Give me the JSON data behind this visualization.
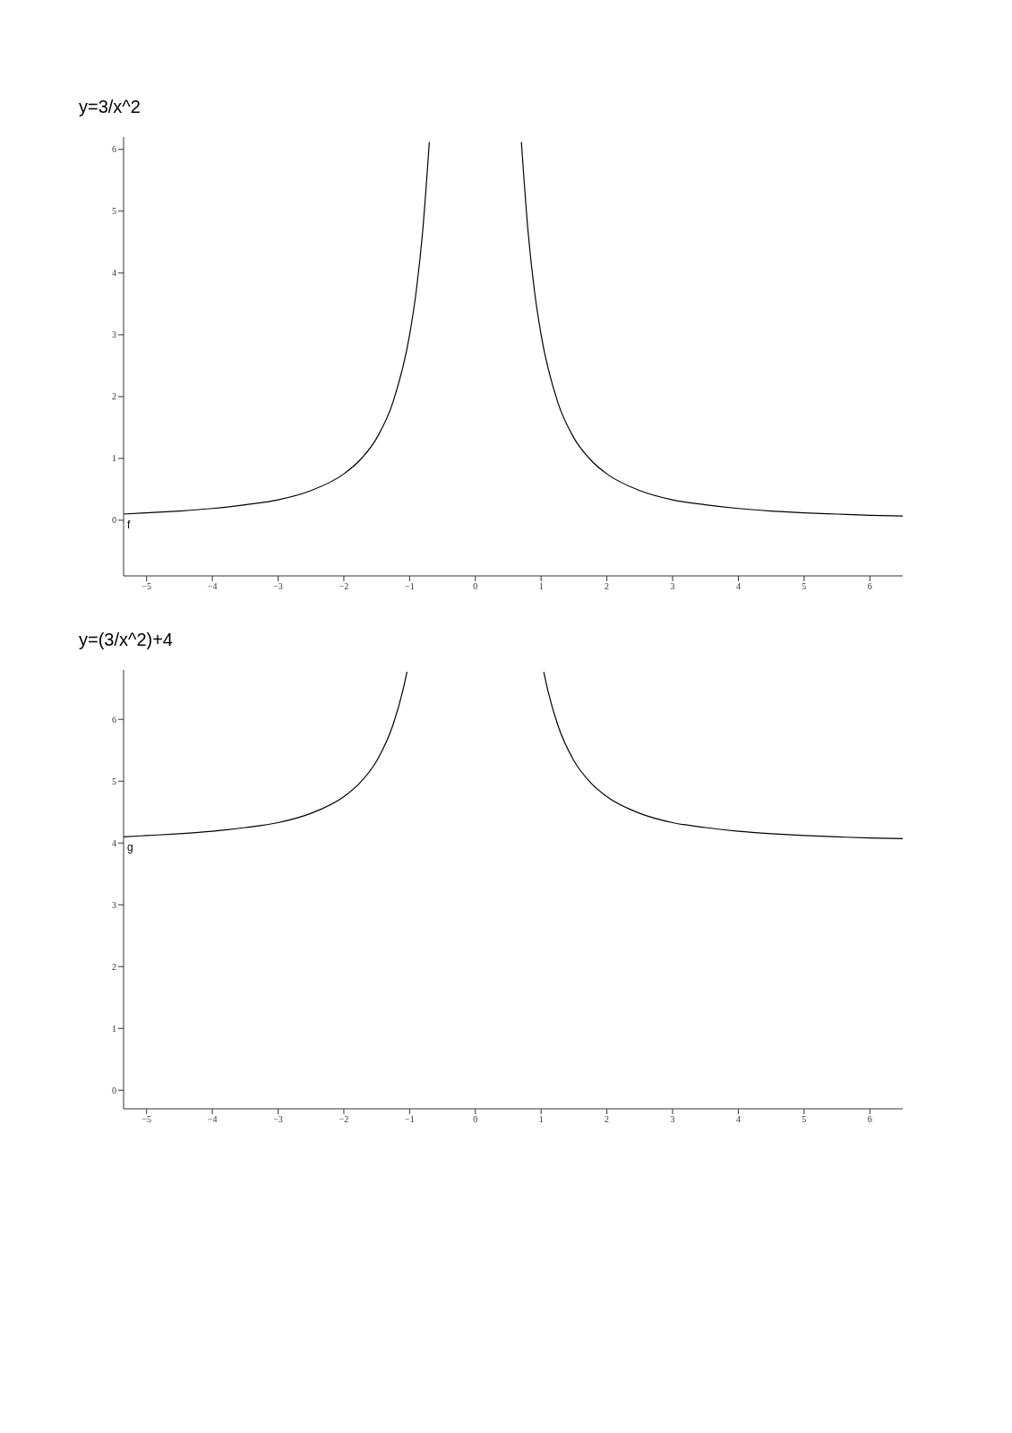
{
  "chart_data": [
    {
      "type": "line",
      "title": "y=3/x^2",
      "xlim": [
        -5.35,
        6.5
      ],
      "ylim": [
        -0.9,
        6.2
      ],
      "xticks": [
        -5,
        -4,
        -3,
        -2,
        -1,
        0,
        1,
        2,
        3,
        4,
        5,
        6
      ],
      "yticks": [
        0,
        1,
        2,
        3,
        4,
        5,
        6
      ],
      "grid": false,
      "legend": false,
      "marker": "none",
      "line_style": "solid",
      "series": [
        {
          "name": "f",
          "color": "#000000",
          "x": [
            -5.35,
            -5,
            -4.5,
            -4,
            -3.5,
            -3,
            -2.5,
            -2,
            -1.75,
            -1.5,
            -1.25,
            -1,
            -0.9,
            -0.8,
            -0.7,
            0,
            0.7,
            0.8,
            0.9,
            1,
            1.25,
            1.5,
            1.75,
            2,
            2.5,
            3,
            3.5,
            4,
            4.5,
            5,
            5.5,
            6,
            6.5
          ],
          "values": [
            0.1,
            0.12,
            0.15,
            0.19,
            0.25,
            0.33,
            0.48,
            0.75,
            0.98,
            1.33,
            1.92,
            3,
            3.7,
            4.69,
            6.12,
            null,
            6.12,
            4.69,
            3.7,
            3,
            1.92,
            1.33,
            0.98,
            0.75,
            0.48,
            0.33,
            0.25,
            0.19,
            0.15,
            0.12,
            0.1,
            0.08,
            0.07
          ]
        }
      ]
    },
    {
      "type": "line",
      "title": "y=(3/x^2)+4",
      "xlim": [
        -5.35,
        6.5
      ],
      "ylim": [
        -0.3,
        6.8
      ],
      "xticks": [
        -5,
        -4,
        -3,
        -2,
        -1,
        0,
        1,
        2,
        3,
        4,
        5,
        6
      ],
      "yticks": [
        0,
        1,
        2,
        3,
        4,
        5,
        6
      ],
      "grid": false,
      "legend": false,
      "marker": "none",
      "line_style": "solid",
      "series": [
        {
          "name": "g",
          "color": "#000000",
          "x": [
            -5.35,
            -5,
            -4.5,
            -4,
            -3.5,
            -3,
            -2.5,
            -2,
            -1.75,
            -1.5,
            -1.25,
            -1.1,
            -1.04,
            0,
            1.04,
            1.1,
            1.25,
            1.5,
            1.75,
            2,
            2.5,
            3,
            3.5,
            4,
            4.5,
            5,
            5.5,
            6,
            6.5
          ],
          "values": [
            4.1,
            4.12,
            4.15,
            4.19,
            4.25,
            4.33,
            4.48,
            4.75,
            4.98,
            5.33,
            5.92,
            6.48,
            6.77,
            null,
            6.77,
            6.48,
            5.92,
            5.33,
            4.98,
            4.75,
            4.48,
            4.33,
            4.25,
            4.19,
            4.15,
            4.12,
            4.1,
            4.08,
            4.07
          ]
        }
      ]
    }
  ]
}
